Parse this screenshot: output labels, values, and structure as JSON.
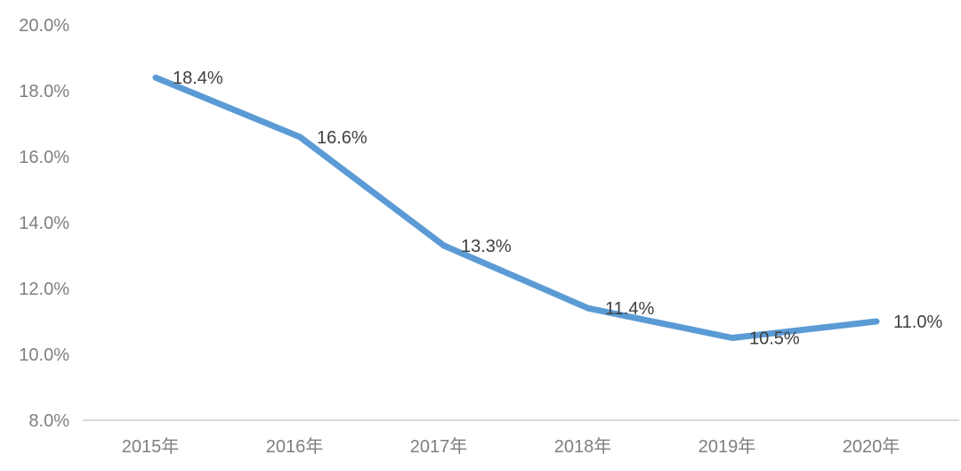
{
  "chart_data": {
    "type": "line",
    "title": "",
    "xlabel": "",
    "ylabel": "",
    "categories": [
      "2015年",
      "2016年",
      "2017年",
      "2018年",
      "2019年",
      "2020年"
    ],
    "series": [
      {
        "name": "rate",
        "values": [
          18.4,
          16.6,
          13.3,
          11.4,
          10.5,
          11.0
        ],
        "data_labels": [
          "18.4%",
          "16.6%",
          "13.3%",
          "11.4%",
          "10.5%",
          "11.0%"
        ]
      }
    ],
    "y_ticks": [
      {
        "value": 20,
        "label": "20.0%"
      },
      {
        "value": 18,
        "label": "18.0%"
      },
      {
        "value": 16,
        "label": "16.0%"
      },
      {
        "value": 14,
        "label": "14.0%"
      },
      {
        "value": 12,
        "label": "12.0%"
      },
      {
        "value": 10,
        "label": "10.0%"
      },
      {
        "value": 8,
        "label": "8.0%"
      }
    ],
    "ylim": [
      8,
      20
    ],
    "grid": false,
    "legend_position": "none",
    "colors": {
      "line": "#5b9bd5",
      "data_label": "#404040",
      "axis_label": "#7f7f7f",
      "axis_line": "#d9d9d9",
      "background": "#ffffff"
    }
  }
}
